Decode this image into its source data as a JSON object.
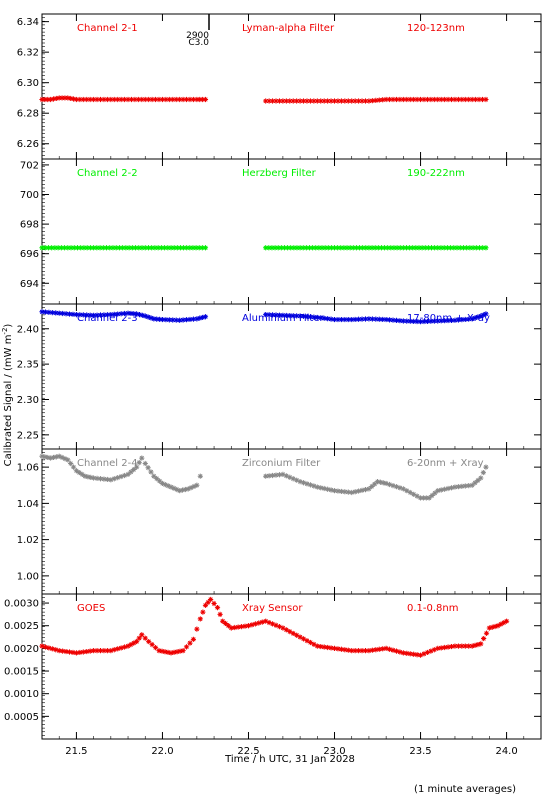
{
  "figure": {
    "ylabel": "Calibrated Signal / (mW m",
    "ylabel_sup": "-2",
    "ylabel_end": ")",
    "xlabel": "Time / h UTC, 31 Jan 2028",
    "footnote": "(1 minute averages)",
    "marker": "star",
    "top_marker_labels": [
      "2900",
      "C3.0"
    ]
  },
  "chart_data": [
    {
      "type": "scatter",
      "panel": "channel-2-1",
      "labels": [
        "Channel 2-1",
        "Lyman-alpha Filter",
        "120-123nm"
      ],
      "color": "#ee0000",
      "xlim": [
        21.3,
        24.2
      ],
      "ylim": [
        6.25,
        6.345
      ],
      "yticks": [
        6.26,
        6.28,
        6.3,
        6.32,
        6.34
      ],
      "ytick_labels": [
        "6.26",
        "6.28",
        "6.30",
        "6.32",
        "6.34"
      ],
      "series": [
        {
          "x": [
            21.3,
            21.35,
            21.4,
            21.45,
            21.5,
            21.6,
            21.7,
            21.8,
            21.9,
            22.0,
            22.1,
            22.2,
            22.25
          ],
          "y": [
            6.289,
            6.289,
            6.29,
            6.29,
            6.289,
            6.289,
            6.289,
            6.289,
            6.289,
            6.289,
            6.289,
            6.289,
            6.289
          ]
        },
        {
          "x": [
            22.6,
            22.7,
            22.8,
            22.9,
            23.0,
            23.1,
            23.2,
            23.3,
            23.4,
            23.5,
            23.6,
            23.7,
            23.8,
            23.88
          ],
          "y": [
            6.288,
            6.288,
            6.288,
            6.288,
            6.288,
            6.288,
            6.288,
            6.289,
            6.289,
            6.289,
            6.289,
            6.289,
            6.289,
            6.289
          ]
        }
      ]
    },
    {
      "type": "scatter",
      "panel": "channel-2-2",
      "labels": [
        "Channel 2-2",
        "Herzberg Filter",
        "190-222nm"
      ],
      "color": "#00ee00",
      "xlim": [
        21.3,
        24.2
      ],
      "ylim": [
        692.6,
        702.4
      ],
      "yticks": [
        694,
        696,
        698,
        700,
        702
      ],
      "ytick_labels": [
        "694",
        "696",
        "698",
        "700",
        "702"
      ],
      "series": [
        {
          "x": [
            21.3,
            21.45,
            21.6,
            21.75,
            21.9,
            22.05,
            22.25
          ],
          "y": [
            696.4,
            696.4,
            696.4,
            696.4,
            696.4,
            696.4,
            696.4
          ]
        },
        {
          "x": [
            22.6,
            22.8,
            23.0,
            23.2,
            23.4,
            23.6,
            23.88
          ],
          "y": [
            696.4,
            696.4,
            696.4,
            696.4,
            696.4,
            696.4,
            696.4
          ]
        }
      ]
    },
    {
      "type": "scatter",
      "panel": "channel-2-3",
      "labels": [
        "Channel 2-3",
        "Aluminium Filter",
        "17-80nm + Xray"
      ],
      "color": "#0000dd",
      "xlim": [
        21.3,
        24.2
      ],
      "ylim": [
        2.23,
        2.435
      ],
      "yticks": [
        2.25,
        2.3,
        2.35,
        2.4
      ],
      "ytick_labels": [
        "2.25",
        "2.30",
        "2.35",
        "2.40"
      ],
      "series": [
        {
          "x": [
            21.3,
            21.4,
            21.5,
            21.6,
            21.7,
            21.8,
            21.85,
            21.9,
            21.95,
            22.0,
            22.1,
            22.2,
            22.25
          ],
          "y": [
            2.424,
            2.422,
            2.42,
            2.419,
            2.42,
            2.422,
            2.421,
            2.418,
            2.414,
            2.413,
            2.412,
            2.414,
            2.417
          ]
        },
        {
          "x": [
            22.6,
            22.7,
            22.8,
            22.9,
            23.0,
            23.1,
            23.2,
            23.3,
            23.4,
            23.5,
            23.6,
            23.7,
            23.8,
            23.85,
            23.88
          ],
          "y": [
            2.42,
            2.419,
            2.418,
            2.416,
            2.413,
            2.413,
            2.414,
            2.413,
            2.411,
            2.41,
            2.411,
            2.412,
            2.414,
            2.418,
            2.421
          ]
        }
      ]
    },
    {
      "type": "scatter",
      "panel": "channel-2-4",
      "labels": [
        "Channel 2-4",
        "Zirconium Filter",
        "6-20nm + Xray"
      ],
      "color": "#888888",
      "xlim": [
        21.3,
        24.2
      ],
      "ylim": [
        0.99,
        1.07
      ],
      "yticks": [
        1.0,
        1.02,
        1.04,
        1.06
      ],
      "ytick_labels": [
        "1.00",
        "1.02",
        "1.04",
        "1.06"
      ],
      "series": [
        {
          "x": [
            21.3,
            21.35,
            21.4,
            21.45,
            21.5,
            21.55,
            21.6,
            21.7,
            21.8,
            21.85,
            21.88,
            21.9,
            21.95,
            22.0,
            22.05,
            22.1,
            22.15,
            22.2,
            22.22
          ],
          "y": [
            1.066,
            1.065,
            1.066,
            1.064,
            1.058,
            1.055,
            1.054,
            1.053,
            1.056,
            1.06,
            1.065,
            1.062,
            1.055,
            1.051,
            1.049,
            1.047,
            1.048,
            1.05,
            1.055
          ]
        },
        {
          "x": [
            22.6,
            22.7,
            22.8,
            22.9,
            23.0,
            23.1,
            23.2,
            23.25,
            23.3,
            23.4,
            23.5,
            23.55,
            23.6,
            23.7,
            23.8,
            23.85,
            23.88
          ],
          "y": [
            1.055,
            1.056,
            1.052,
            1.049,
            1.047,
            1.046,
            1.048,
            1.052,
            1.051,
            1.048,
            1.043,
            1.043,
            1.047,
            1.049,
            1.05,
            1.054,
            1.06
          ]
        }
      ]
    },
    {
      "type": "scatter",
      "panel": "goes",
      "labels": [
        "GOES",
        "Xray Sensor",
        "0.1-0.8nm"
      ],
      "color": "#ee0000",
      "xlim": [
        21.3,
        24.2
      ],
      "ylim": [
        0.0,
        0.0032
      ],
      "yticks": [
        0.0005,
        0.001,
        0.0015,
        0.002,
        0.0025,
        0.003
      ],
      "ytick_labels": [
        "0.0005",
        "0.0010",
        "0.0015",
        "0.0020",
        "0.0025",
        "0.0030"
      ],
      "series": [
        {
          "x": [
            21.3,
            21.4,
            21.5,
            21.6,
            21.7,
            21.8,
            21.85,
            21.88,
            21.92,
            21.98,
            22.05,
            22.12,
            22.18,
            22.22,
            22.25,
            22.28,
            22.32,
            22.35,
            22.4,
            22.5,
            22.6,
            22.7,
            22.8,
            22.9,
            23.0,
            23.1,
            23.2,
            23.3,
            23.4,
            23.5,
            23.6,
            23.7,
            23.8,
            23.85,
            23.9,
            23.95,
            24.0
          ],
          "y": [
            0.00205,
            0.00195,
            0.0019,
            0.00195,
            0.00195,
            0.00205,
            0.00215,
            0.0023,
            0.00215,
            0.00195,
            0.0019,
            0.00195,
            0.0022,
            0.00265,
            0.00295,
            0.00308,
            0.0029,
            0.0026,
            0.00245,
            0.0025,
            0.0026,
            0.00245,
            0.00225,
            0.00205,
            0.002,
            0.00195,
            0.00195,
            0.002,
            0.0019,
            0.00185,
            0.002,
            0.00205,
            0.00205,
            0.0021,
            0.00245,
            0.0025,
            0.0026
          ]
        }
      ]
    }
  ],
  "xaxis": {
    "xlim": [
      21.3,
      24.2
    ],
    "ticks": [
      21.5,
      22.0,
      22.5,
      23.0,
      23.5,
      24.0
    ],
    "tick_labels": [
      "21.5",
      "22.0",
      "22.5",
      "23.0",
      "23.5",
      "24.0"
    ]
  }
}
